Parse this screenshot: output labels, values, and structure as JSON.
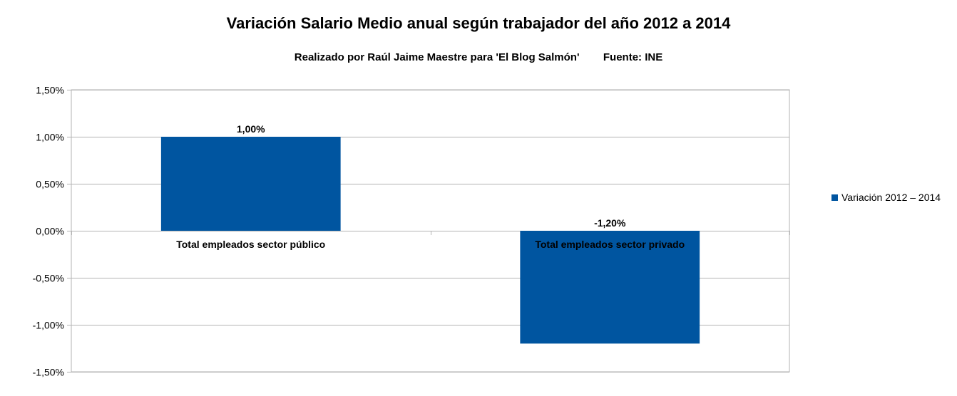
{
  "chart_data": {
    "type": "bar",
    "title": "Variación Salario Medio anual según trabajador del año 2012 a 2014",
    "subtitle": "Realizado por Raúl Jaime Maestre para 'El Blog Salmón'        Fuente: INE",
    "categories": [
      "Total empleados sector público",
      "Total empleados sector privado"
    ],
    "series": [
      {
        "name": "Variación 2012 – 2014",
        "values": [
          1.0,
          -1.2
        ],
        "color": "#0055a0"
      }
    ],
    "data_labels": [
      "1,00%",
      "-1,20%"
    ],
    "yticks": [
      1.5,
      1.0,
      0.5,
      0.0,
      -0.5,
      -1.0,
      -1.5
    ],
    "ytick_labels": [
      "1,50%",
      "1,00%",
      "0,50%",
      "0,00%",
      "-0,50%",
      "-1,00%",
      "-1,50%"
    ],
    "ylim": [
      -1.5,
      1.5
    ],
    "xlabel": "",
    "ylabel": "",
    "grid": true,
    "legend_position": "right"
  }
}
